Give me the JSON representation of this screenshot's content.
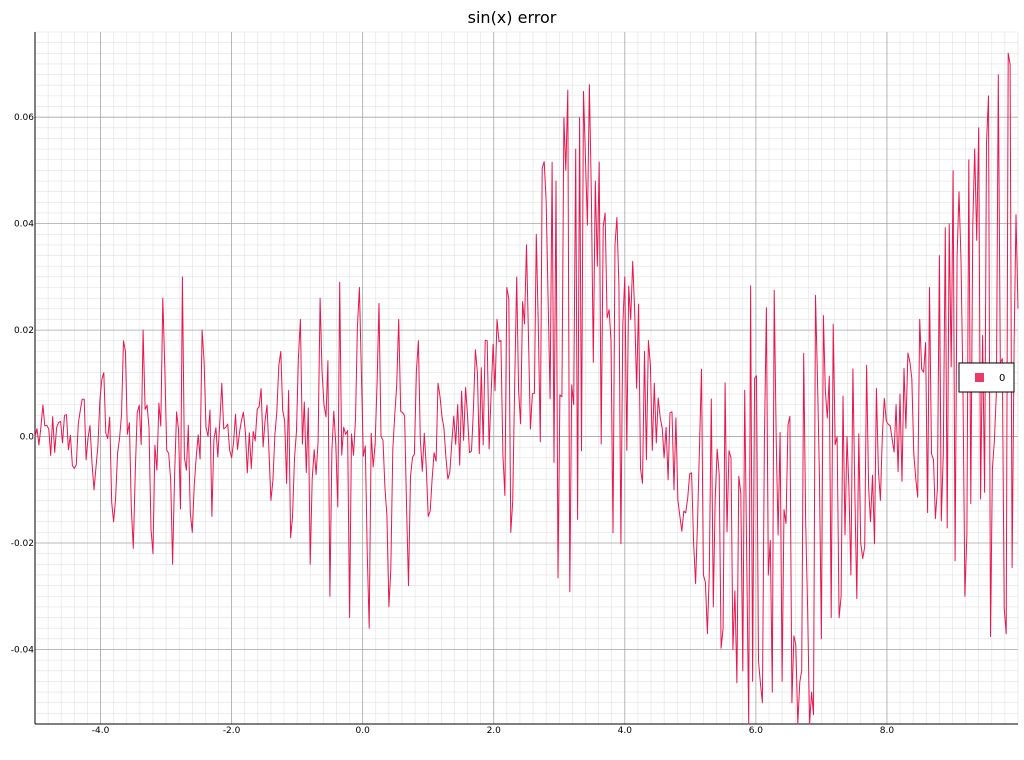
{
  "chart_data": {
    "type": "line",
    "title": "sin(x) error",
    "xlabel": "",
    "ylabel": "",
    "xlim": [
      -5.0,
      10.0
    ],
    "ylim": [
      -0.054,
      0.076
    ],
    "x_ticks": [
      -4.0,
      -2.0,
      0.0,
      2.0,
      4.0,
      6.0,
      8.0
    ],
    "x_tick_labels": [
      "-4.0",
      "-2.0",
      "0.0",
      "2.0",
      "4.0",
      "6.0",
      "8.0"
    ],
    "y_ticks": [
      -0.04,
      -0.02,
      0.0,
      0.02,
      0.04,
      0.06
    ],
    "y_tick_labels": [
      "-0.04",
      "-0.02",
      "0.0",
      "0.02",
      "0.04",
      "0.06"
    ],
    "grid": true,
    "legend_position": "right",
    "series": [
      {
        "name": "0",
        "color": "#e8174f",
        "x": [
          -5.0,
          -4.85,
          -4.7,
          -4.55,
          -4.4,
          -4.25,
          -4.1,
          -3.95,
          -3.8,
          -3.65,
          -3.5,
          -3.35,
          -3.2,
          -3.05,
          -2.9,
          -2.75,
          -2.6,
          -2.45,
          -2.3,
          -2.15,
          -2.0,
          -1.85,
          -1.7,
          -1.55,
          -1.4,
          -1.25,
          -1.1,
          -0.95,
          -0.8,
          -0.65,
          -0.5,
          -0.35,
          -0.2,
          -0.05,
          0.1,
          0.25,
          0.4,
          0.55,
          0.7,
          0.85,
          1.0,
          1.15,
          1.3,
          1.45,
          1.6,
          1.75,
          1.9,
          2.05,
          2.2,
          2.35,
          2.5,
          2.65,
          2.8,
          2.95,
          3.1,
          3.25,
          3.4,
          3.55,
          3.7,
          3.85,
          4.0,
          4.15,
          4.3,
          4.45,
          4.6,
          4.75,
          4.9,
          5.05,
          5.2,
          5.35,
          5.5,
          5.65,
          5.8,
          5.95,
          6.1,
          6.25,
          6.4,
          6.55,
          6.7,
          6.85,
          7.0,
          7.15,
          7.3,
          7.45,
          7.6,
          7.75,
          7.9,
          8.05,
          8.2,
          8.35,
          8.5,
          8.65,
          8.8,
          8.95,
          9.1,
          9.25,
          9.4,
          9.55,
          9.7,
          9.85,
          10.0
        ],
        "y": [
          0.0,
          0.002,
          -0.003,
          0.004,
          -0.006,
          0.007,
          -0.01,
          0.012,
          -0.016,
          0.018,
          -0.021,
          0.02,
          -0.022,
          0.026,
          -0.024,
          0.03,
          -0.018,
          0.02,
          -0.015,
          0.01,
          -0.004,
          0.003,
          -0.006,
          0.009,
          -0.012,
          0.016,
          -0.019,
          0.022,
          -0.024,
          0.026,
          -0.03,
          0.029,
          -0.034,
          0.028,
          -0.036,
          0.025,
          -0.032,
          0.022,
          -0.028,
          0.018,
          -0.015,
          0.01,
          -0.008,
          0.006,
          0.004,
          0.012,
          0.018,
          0.022,
          0.028,
          0.03,
          0.036,
          0.038,
          0.044,
          0.048,
          0.05,
          0.054,
          0.052,
          0.048,
          0.042,
          0.036,
          0.03,
          0.024,
          0.016,
          0.01,
          -0.004,
          -0.01,
          -0.014,
          -0.02,
          -0.026,
          -0.032,
          -0.036,
          -0.04,
          -0.044,
          -0.046,
          -0.05,
          -0.048,
          -0.046,
          -0.05,
          -0.044,
          -0.048,
          -0.038,
          -0.034,
          -0.03,
          -0.026,
          -0.02,
          -0.016,
          -0.012,
          0.002,
          0.008,
          0.014,
          0.022,
          0.028,
          0.034,
          0.04,
          0.046,
          0.052,
          0.058,
          0.064,
          0.068,
          0.072,
          0.024
        ]
      }
    ]
  }
}
